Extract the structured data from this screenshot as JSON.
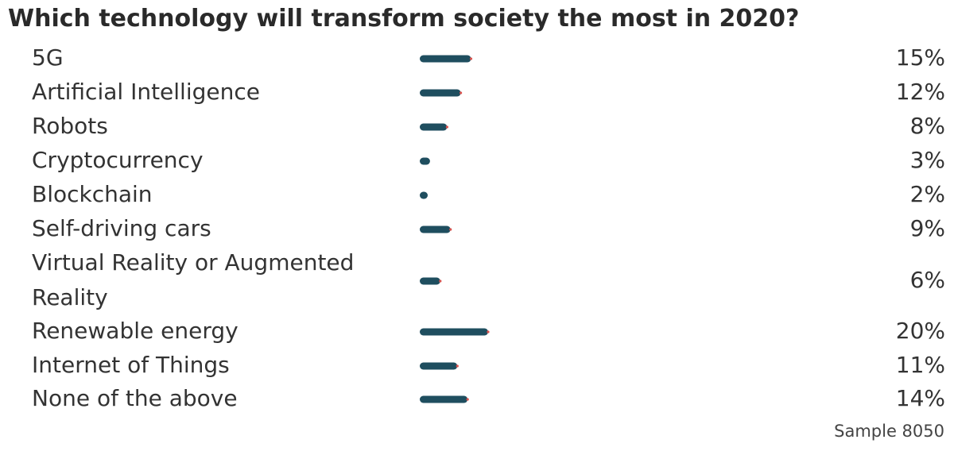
{
  "chart_data": {
    "type": "bar",
    "title": "Which technology will transform society the most in 2020?",
    "categories": [
      "5G",
      "Artificial Intelligence",
      "Robots",
      "Cryptocurrency",
      "Blockchain",
      "Self-driving cars",
      "Virtual Reality or Augmented Reality",
      "Renewable energy",
      "Internet of Things",
      "None of the above"
    ],
    "category_lines": [
      [
        "5G"
      ],
      [
        "Artificial Intelligence"
      ],
      [
        "Robots"
      ],
      [
        "Cryptocurrency"
      ],
      [
        "Blockchain"
      ],
      [
        "Self-driving cars"
      ],
      [
        "Virtual Reality or Augmented",
        "Reality"
      ],
      [
        "Renewable energy"
      ],
      [
        "Internet of Things"
      ],
      [
        "None of the above"
      ]
    ],
    "values": [
      15,
      12,
      8,
      3,
      2,
      9,
      6,
      20,
      11,
      14
    ],
    "value_labels": [
      "15%",
      "12%",
      "8%",
      "3%",
      "2%",
      "9%",
      "6%",
      "20%",
      "11%",
      "14%"
    ],
    "unit": "%",
    "orientation": "horizontal",
    "xlim": [
      0,
      100
    ],
    "grid": false,
    "legend": "none",
    "colors": {
      "bar": "#1f4e5f",
      "bar_tip": "#d9534f",
      "text": "#333333"
    },
    "footnote": "Sample 8050"
  }
}
